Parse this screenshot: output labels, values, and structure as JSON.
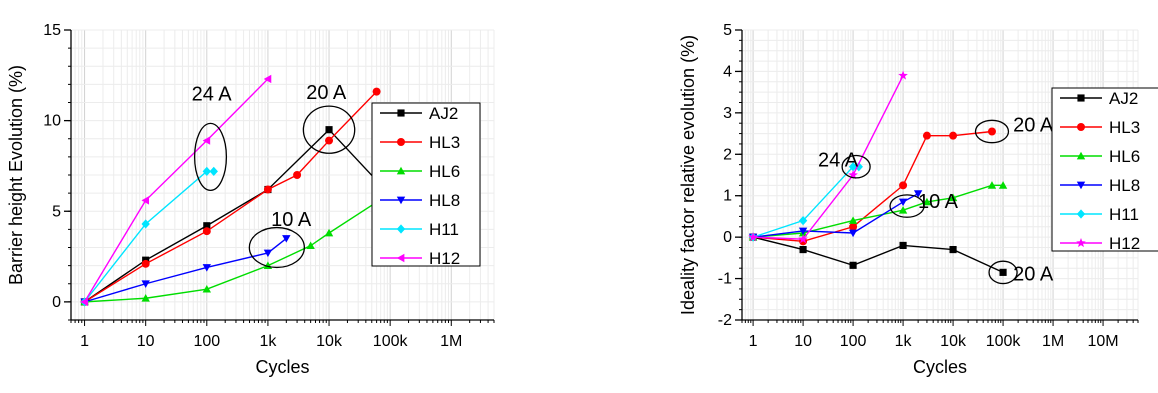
{
  "chart_data": [
    {
      "type": "line",
      "xlabel": "Cycles",
      "ylabel": "Barrier height Evolution (%)",
      "x_scale": "log",
      "xlim": [
        0.6,
        5000000
      ],
      "ylim": [
        -1,
        15
      ],
      "xticks": [
        {
          "value": 1,
          "label": "1"
        },
        {
          "value": 10,
          "label": "10"
        },
        {
          "value": 100,
          "label": "100"
        },
        {
          "value": 1000,
          "label": "1k"
        },
        {
          "value": 10000,
          "label": "10k"
        },
        {
          "value": 100000,
          "label": "100k"
        },
        {
          "value": 1000000,
          "label": "1M"
        }
      ],
      "yticks": [
        0,
        5,
        10,
        15
      ],
      "legend_position": "right",
      "series": [
        {
          "name": "AJ2",
          "color": "#000000",
          "marker": "square",
          "x": [
            1,
            10,
            100,
            1000,
            10000,
            100000
          ],
          "y": [
            0,
            2.3,
            4.2,
            6.2,
            9.5,
            5.9
          ]
        },
        {
          "name": "HL3",
          "color": "#ff0000",
          "marker": "circle",
          "x": [
            1,
            10,
            100,
            1000,
            3000,
            10000,
            60000
          ],
          "y": [
            0,
            2.1,
            3.9,
            6.2,
            7.0,
            8.9,
            11.6
          ]
        },
        {
          "name": "HL6",
          "color": "#00dd00",
          "marker": "triangle-up",
          "x": [
            1,
            10,
            100,
            1000,
            5000,
            10000,
            60000,
            100000
          ],
          "y": [
            0,
            0.2,
            0.7,
            2.0,
            3.1,
            3.8,
            5.5,
            5.5
          ]
        },
        {
          "name": "HL8",
          "color": "#0000ff",
          "marker": "triangle-down",
          "x": [
            1,
            10,
            100,
            1000,
            2000
          ],
          "y": [
            0,
            1.0,
            1.9,
            2.7,
            3.5
          ]
        },
        {
          "name": "H11",
          "color": "#00e5ff",
          "marker": "diamond",
          "x": [
            1,
            10,
            100,
            130
          ],
          "y": [
            0,
            4.3,
            7.2,
            7.2
          ]
        },
        {
          "name": "H12",
          "color": "#ff00ff",
          "marker": "triangle-left",
          "x": [
            1,
            10,
            100,
            1000
          ],
          "y": [
            0,
            5.6,
            8.9,
            12.3
          ]
        }
      ],
      "annotations": [
        {
          "text": "24 A",
          "x": 120,
          "y": 11.1
        },
        {
          "text": "20 A",
          "x": 9000,
          "y": 11.2
        },
        {
          "text": "10 A",
          "x": 2400,
          "y": 4.2
        }
      ],
      "ellipses": [
        {
          "x": 115,
          "y": 8.0,
          "rx_dec": 0.26,
          "ry_val": 1.85
        },
        {
          "x": 10000,
          "y": 9.5,
          "rx_dec": 0.42,
          "ry_val": 1.3
        },
        {
          "x": 1400,
          "y": 3.0,
          "rx_dec": 0.45,
          "ry_val": 1.1
        }
      ]
    },
    {
      "type": "line",
      "xlabel": "Cycles",
      "ylabel": "Ideality factor relative evolution (%)",
      "x_scale": "log",
      "xlim": [
        0.6,
        50000000
      ],
      "ylim": [
        -2,
        5
      ],
      "xticks": [
        {
          "value": 1,
          "label": "1"
        },
        {
          "value": 10,
          "label": "10"
        },
        {
          "value": 100,
          "label": "100"
        },
        {
          "value": 1000,
          "label": "1k"
        },
        {
          "value": 10000,
          "label": "10k"
        },
        {
          "value": 100000,
          "label": "100k"
        },
        {
          "value": 1000000,
          "label": "1M"
        },
        {
          "value": 10000000,
          "label": "10M"
        }
      ],
      "yticks": [
        -2,
        -1,
        0,
        1,
        2,
        3,
        4,
        5
      ],
      "legend_position": "right",
      "series": [
        {
          "name": "AJ2",
          "color": "#000000",
          "marker": "square",
          "x": [
            1,
            10,
            100,
            1000,
            10000,
            100000
          ],
          "y": [
            0,
            -0.3,
            -0.68,
            -0.2,
            -0.3,
            -0.85
          ]
        },
        {
          "name": "HL3",
          "color": "#ff0000",
          "marker": "circle",
          "x": [
            1,
            10,
            100,
            1000,
            3000,
            10000,
            60000
          ],
          "y": [
            0,
            -0.1,
            0.25,
            1.25,
            2.45,
            2.45,
            2.55
          ]
        },
        {
          "name": "HL6",
          "color": "#00dd00",
          "marker": "triangle-up",
          "x": [
            1,
            10,
            100,
            1000,
            3000,
            10000,
            60000,
            100000
          ],
          "y": [
            0,
            0.1,
            0.4,
            0.65,
            0.85,
            0.95,
            1.25,
            1.25
          ]
        },
        {
          "name": "HL8",
          "color": "#0000ff",
          "marker": "triangle-down",
          "x": [
            1,
            10,
            100,
            1000,
            2000
          ],
          "y": [
            0,
            0.15,
            0.1,
            0.85,
            1.05
          ]
        },
        {
          "name": "H11",
          "color": "#00e5ff",
          "marker": "diamond",
          "x": [
            1,
            10,
            100,
            130
          ],
          "y": [
            0,
            0.4,
            1.7,
            1.7
          ]
        },
        {
          "name": "H12",
          "color": "#ff00ff",
          "marker": "star",
          "x": [
            1,
            10,
            100,
            1000
          ],
          "y": [
            0,
            -0.05,
            1.5,
            3.9
          ]
        }
      ],
      "annotations": [
        {
          "text": "24 A",
          "x": 50,
          "y": 1.7
        },
        {
          "text": "20 A",
          "x": 400000,
          "y": 2.55
        },
        {
          "text": "10 A",
          "x": 5000,
          "y": 0.7
        },
        {
          "text": "20 A",
          "x": 400000,
          "y": -1.05
        }
      ],
      "ellipses": [
        {
          "x": 115,
          "y": 1.7,
          "rx_dec": 0.28,
          "ry_val": 0.27
        },
        {
          "x": 60000,
          "y": 2.55,
          "rx_dec": 0.33,
          "ry_val": 0.27
        },
        {
          "x": 1200,
          "y": 0.75,
          "rx_dec": 0.34,
          "ry_val": 0.27
        },
        {
          "x": 100000,
          "y": -0.85,
          "rx_dec": 0.28,
          "ry_val": 0.27
        }
      ]
    }
  ]
}
